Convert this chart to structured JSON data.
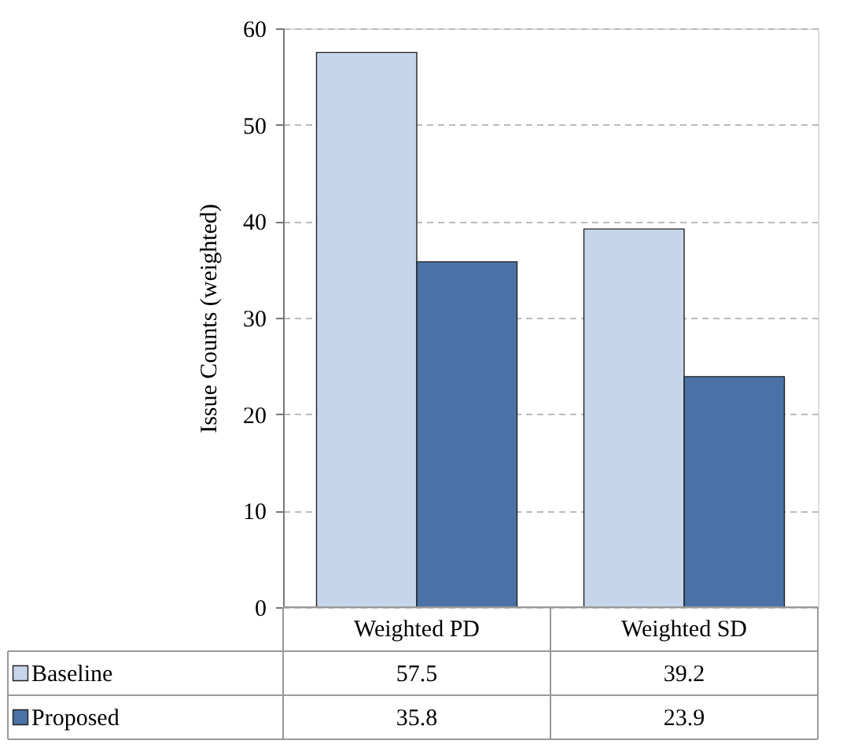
{
  "chart_data": {
    "type": "bar",
    "ylabel": "Issue Counts (weighted)",
    "categories": [
      "Weighted PD",
      "Weighted SD"
    ],
    "series": [
      {
        "name": "Baseline",
        "color": "#c6d5ea",
        "values": [
          57.5,
          39.2
        ]
      },
      {
        "name": "Proposed",
        "color": "#4a72a6",
        "values": [
          35.8,
          23.9
        ]
      }
    ],
    "ylim": [
      0,
      60
    ],
    "yticks": [
      0,
      10,
      20,
      30,
      40,
      50,
      60
    ],
    "grid": "y",
    "legend": "bottom left",
    "data_labels": true
  }
}
